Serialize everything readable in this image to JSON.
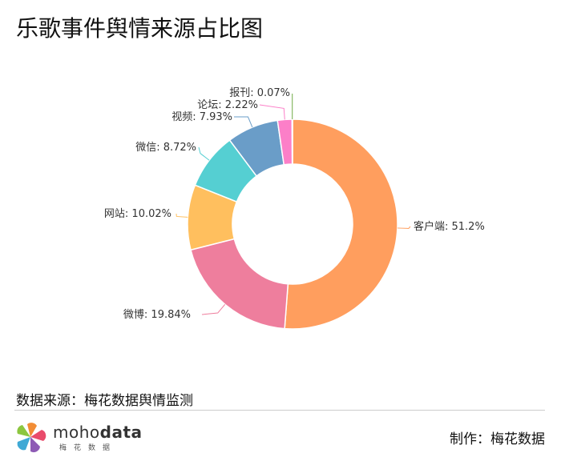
{
  "title": "乐歌事件舆情来源占比图",
  "chart_data": {
    "type": "pie",
    "donut": true,
    "title": "乐歌事件舆情来源占比图",
    "slices": [
      {
        "name": "客户端",
        "value": 51.2,
        "label": "客户端: 51.2%",
        "color": "#FF9E5E"
      },
      {
        "name": "微博",
        "value": 19.84,
        "label": "微博: 19.84%",
        "color": "#EE7E9D"
      },
      {
        "name": "网站",
        "value": 10.02,
        "label": "网站: 10.02%",
        "color": "#FFBF5E"
      },
      {
        "name": "微信",
        "value": 8.72,
        "label": "微信: 8.72%",
        "color": "#55CFD2"
      },
      {
        "name": "视频",
        "value": 7.93,
        "label": "视频: 7.93%",
        "color": "#6A9DC8"
      },
      {
        "name": "论坛",
        "value": 2.22,
        "label": "论坛: 2.22%",
        "color": "#FC7FC8"
      },
      {
        "name": "报刊",
        "value": 0.07,
        "label": "报刊: 0.07%",
        "color": "#6FAA44"
      }
    ]
  },
  "footer": {
    "source": "数据来源：梅花数据舆情监测",
    "brand_prefix": "moho",
    "brand_suffix": "data",
    "brand_sub": "梅花数据",
    "credit": "制作：梅花数据"
  }
}
